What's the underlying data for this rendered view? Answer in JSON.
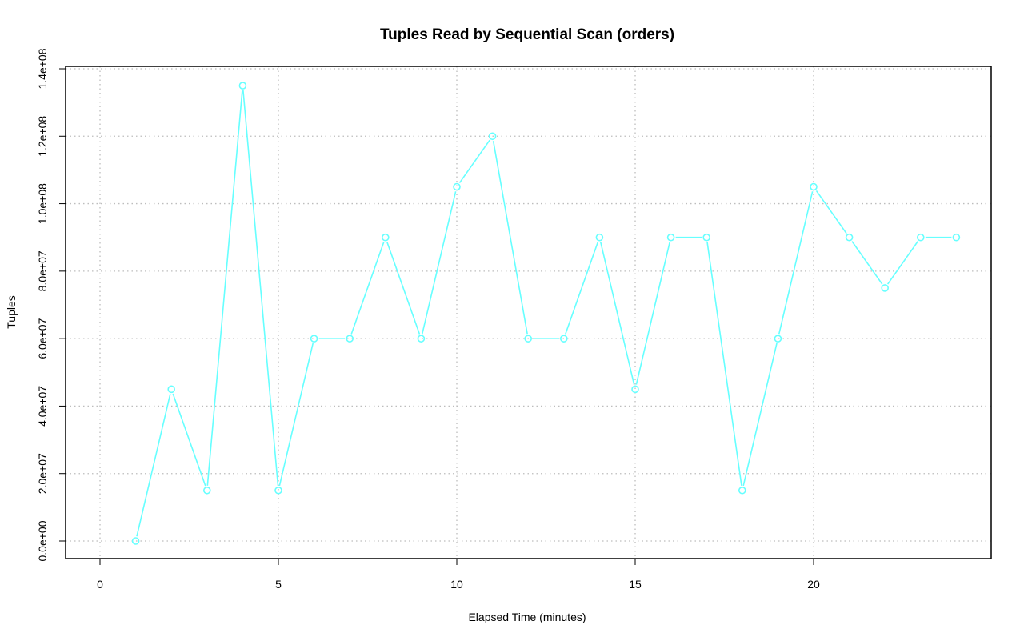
{
  "chart_data": {
    "type": "line",
    "title": "Tuples Read by Sequential Scan (orders)",
    "xlabel": "Elapsed Time (minutes)",
    "ylabel": "Tuples",
    "xlim": [
      -1,
      25
    ],
    "ylim": [
      -5000000,
      140000000
    ],
    "xticks": [
      0,
      5,
      10,
      15,
      20
    ],
    "xtick_labels": [
      "0",
      "5",
      "10",
      "15",
      "20"
    ],
    "yticks": [
      0,
      20000000,
      40000000,
      60000000,
      80000000,
      100000000,
      120000000,
      140000000
    ],
    "ytick_labels": [
      "0.0e+00",
      "2.0e+07",
      "4.0e+07",
      "6.0e+07",
      "8.0e+07",
      "1.0e+08",
      "1.2e+08",
      "1.4e+08"
    ],
    "grid": true,
    "series": [
      {
        "color": "#66ffff",
        "marker": "circle",
        "x": [
          1,
          2,
          3,
          4,
          5,
          6,
          7,
          8,
          9,
          10,
          11,
          12,
          13,
          14,
          15,
          16,
          17,
          18,
          19,
          20,
          21,
          22,
          23,
          24
        ],
        "y": [
          0,
          45000000,
          15000000,
          135000000,
          15000000,
          60000000,
          60000000,
          90000000,
          60000000,
          105000000,
          120000000,
          60000000,
          60000000,
          90000000,
          45000000,
          90000000,
          90000000,
          15000000,
          60000000,
          105000000,
          90000000,
          75000000,
          90000000,
          90000000
        ]
      }
    ]
  }
}
